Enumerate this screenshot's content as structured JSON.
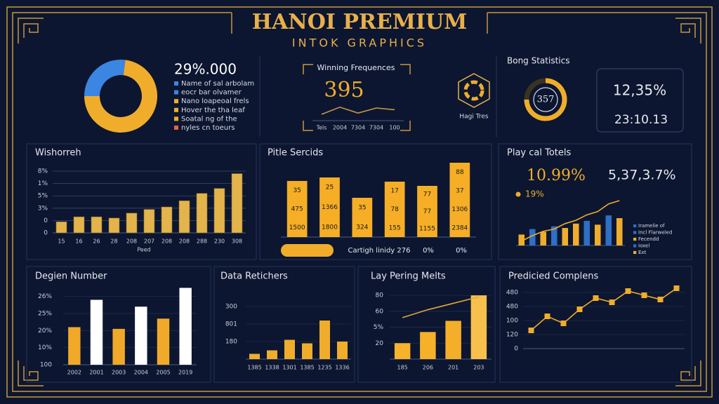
{
  "header": {
    "title": "HANOI PREMIUM",
    "subtitle": "INTOK GRAPHICS"
  },
  "badge": {
    "label": "Hagi Tres"
  },
  "chart_data": [
    {
      "type": "donut",
      "headline": "29%.000",
      "values": [
        27,
        73
      ],
      "colors": [
        "#3b86e3",
        "#f0ad2b"
      ],
      "legend": [
        {
          "text": "Name of sal arbolam",
          "color": "#3b86e3"
        },
        {
          "text": "eocr bar olvamer",
          "color": "#3b86e3"
        },
        {
          "text": "Nano loapeoal frels",
          "color": "#f0ad2b"
        },
        {
          "text": "Hover the tha leaf",
          "color": "#f0ad2b"
        },
        {
          "text": "Soatal ng of the",
          "color": "#f0ad2b"
        },
        {
          "text": "nyles cn toeurs",
          "color": "#e8643a"
        }
      ]
    },
    {
      "type": "line",
      "title": "Winning Frequences",
      "headline": "395",
      "categories": [
        "Tels",
        "2004",
        "7304",
        "7304",
        "100"
      ],
      "ylim": [
        0,
        5
      ],
      "series": [
        {
          "type": "line",
          "color": "#c9974a",
          "values": [
            1.5,
            3.2,
            1.8,
            3.0,
            2.6
          ]
        }
      ]
    },
    {
      "type": "gauge",
      "title": "Bong Statistics",
      "value": 75,
      "ylim": [
        0,
        100
      ],
      "label": "357",
      "cards": [
        "12,35%",
        "23:10.13"
      ]
    },
    {
      "type": "bar",
      "title": "Wishorreh",
      "xlabel": "Peed",
      "ylim": [
        0,
        5.4
      ],
      "grid": true,
      "yticks": [
        0,
        {
          "value": 1,
          "label": "0"
        },
        {
          "value": 2,
          "label": "3%"
        },
        {
          "value": 3,
          "label": "5%"
        },
        {
          "value": 4,
          "label": "1%"
        },
        {
          "value": 5,
          "label": "8%"
        }
      ],
      "categories": [
        "15",
        "16",
        "26",
        "28",
        "208",
        "207",
        "208",
        "208",
        "288",
        "230",
        "308"
      ],
      "series": [
        {
          "type": "bar",
          "color": "#e3b44c",
          "values": [
            0.9,
            1.3,
            1.3,
            1.2,
            1.6,
            1.9,
            2.1,
            2.6,
            3.2,
            3.6,
            4.8
          ]
        }
      ]
    },
    {
      "type": "bar",
      "title": "Pitle Sercids",
      "ylim": [
        0,
        110
      ],
      "series": [
        {
          "type": "bar",
          "color": "#f5ae25",
          "values": [
            80,
            85,
            56,
            79,
            73,
            106
          ]
        }
      ],
      "bar_labels": [
        [
          "35",
          "475",
          "1500"
        ],
        [
          "25",
          "1366",
          "1800"
        ],
        [
          "35",
          "324"
        ],
        [
          "17",
          "78",
          "155"
        ],
        [
          "77",
          "77",
          "1155"
        ],
        [
          "88",
          "37",
          "1306",
          "2384"
        ]
      ],
      "footer": [
        "Cartigh linidy 276",
        "0%",
        "0%"
      ]
    },
    {
      "type": "combo",
      "title": "Play cal Totels",
      "headline": "10.99%",
      "headline2": "5,37,3.7%",
      "callout": "19%",
      "ylim": [
        0,
        100
      ],
      "series": [
        {
          "type": "bar",
          "colors": [
            "#f0ad2b",
            "#2f6fc4",
            "#f0ad2b",
            "#2f6fc4",
            "#f0ad2b",
            "#f0ad2b",
            "#2f6fc4",
            "#f0ad2b",
            "#2f6fc4",
            "#f0ad2b"
          ],
          "values": [
            20,
            30,
            25,
            35,
            32,
            40,
            45,
            38,
            55,
            50
          ]
        },
        {
          "type": "line",
          "color": "#f0ad2b",
          "values": [
            8,
            18,
            26,
            30,
            40,
            46,
            56,
            62,
            76,
            82
          ]
        }
      ],
      "legend": [
        {
          "text": "Iramelie of",
          "color": "#2f6fc4"
        },
        {
          "text": "Incl Flarweled",
          "color": "#2f6fc4"
        },
        {
          "text": "Fecendd",
          "color": "#f0ad2b"
        },
        {
          "text": "Ioxel",
          "color": "#2f6fc4"
        },
        {
          "text": "Ext",
          "color": "#f0ad2b"
        }
      ]
    },
    {
      "type": "bar",
      "title": "Degien Number",
      "ylim": [
        0,
        4.6
      ],
      "yticks": [
        {
          "value": 0,
          "label": "100"
        },
        {
          "value": 1,
          "label": "10%"
        },
        {
          "value": 2,
          "label": "20%"
        },
        {
          "value": 3,
          "label": "25%"
        },
        {
          "value": 4,
          "label": "26%"
        }
      ],
      "categories": [
        "2002",
        "2001",
        "2003",
        "2004",
        "2005",
        "2019"
      ],
      "series": [
        {
          "type": "bar",
          "colors": [
            "#f0a928",
            "#ffffff",
            "#f0a928",
            "#ffffff",
            "#f0a928",
            "#ffffff"
          ],
          "values": [
            2.2,
            3.8,
            2.1,
            3.4,
            2.7,
            4.5
          ]
        }
      ]
    },
    {
      "type": "bar",
      "title": "Data Retichers",
      "ylim": [
        0,
        4
      ],
      "yticks": [
        {
          "value": 1,
          "label": "180"
        },
        {
          "value": 2,
          "label": "801"
        },
        {
          "value": 3,
          "label": "300"
        }
      ],
      "categories": [
        "1385",
        "1338",
        "1301",
        "1385",
        "1235",
        "1336"
      ],
      "series": [
        {
          "type": "bar",
          "color": "#f0ad2b",
          "values": [
            0.3,
            0.5,
            1.1,
            0.9,
            2.2,
            1.0
          ]
        }
      ]
    },
    {
      "type": "combo",
      "title": "Lay Pering Melts",
      "ylim": [
        0,
        4.4
      ],
      "yticks": [
        {
          "value": 1,
          "label": "20"
        },
        {
          "value": 2,
          "label": "5%"
        },
        {
          "value": 3,
          "label": "60"
        },
        {
          "value": 4,
          "label": "80"
        }
      ],
      "categories": [
        "185",
        "206",
        "201",
        "203"
      ],
      "series": [
        {
          "type": "bar",
          "colors": [
            "#f7b32b",
            "#f6b12a",
            "#f5ae29",
            "#f7c04d"
          ],
          "values": [
            1.0,
            1.7,
            2.4,
            4.0
          ]
        },
        {
          "type": "line",
          "color": "#e0a63a",
          "values": [
            2.6,
            3.1,
            3.5,
            3.9
          ]
        }
      ]
    },
    {
      "type": "line",
      "title": "Predicied Complens",
      "ylim": [
        0,
        4.6
      ],
      "yticks": [
        0,
        {
          "value": 1,
          "label": "120"
        },
        {
          "value": 2,
          "label": "100"
        },
        {
          "value": 3,
          "label": "480"
        },
        {
          "value": 4,
          "label": "480"
        }
      ],
      "series": [
        {
          "type": "line",
          "color": "#f0ad2b",
          "markers": true,
          "values": [
            1.3,
            2.3,
            1.8,
            2.8,
            3.6,
            3.3,
            4.1,
            3.8,
            3.5,
            4.3
          ]
        }
      ]
    }
  ]
}
